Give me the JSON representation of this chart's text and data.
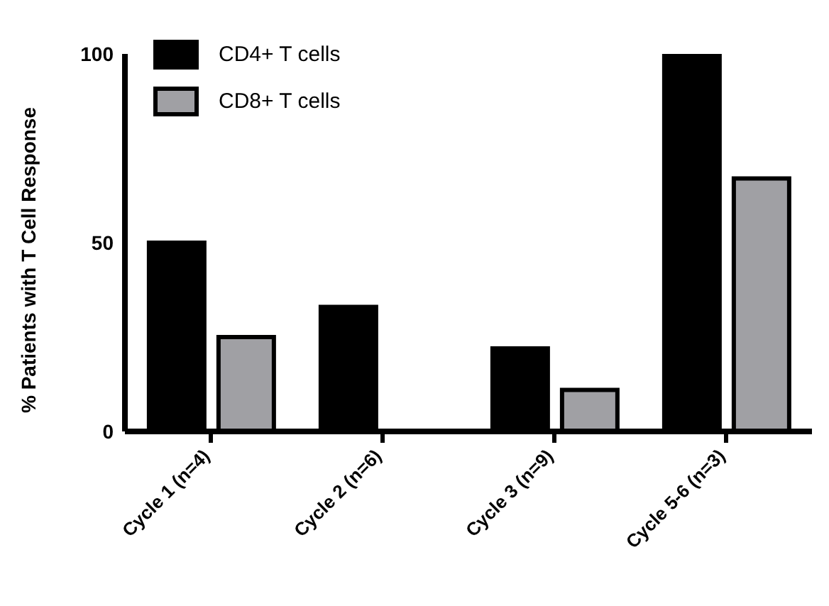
{
  "chart_data": {
    "type": "bar",
    "ylabel": "% Patients with T Cell Response",
    "categories": [
      "Cycle 1 (n=4)",
      "Cycle 2 (n=6)",
      "Cycle 3 (n=9)",
      "Cycle 5-6 (n=3)"
    ],
    "series": [
      {
        "name": "CD4+ T cells",
        "color": "#000000",
        "values": [
          50,
          33,
          22,
          100
        ]
      },
      {
        "name": "CD8+ T cells",
        "color": "#a0a0a4",
        "values": [
          25,
          0,
          11,
          67
        ]
      }
    ],
    "ylim": [
      0,
      100
    ],
    "yticks": [
      0,
      50,
      100
    ],
    "grid": false,
    "legend": "top left"
  }
}
